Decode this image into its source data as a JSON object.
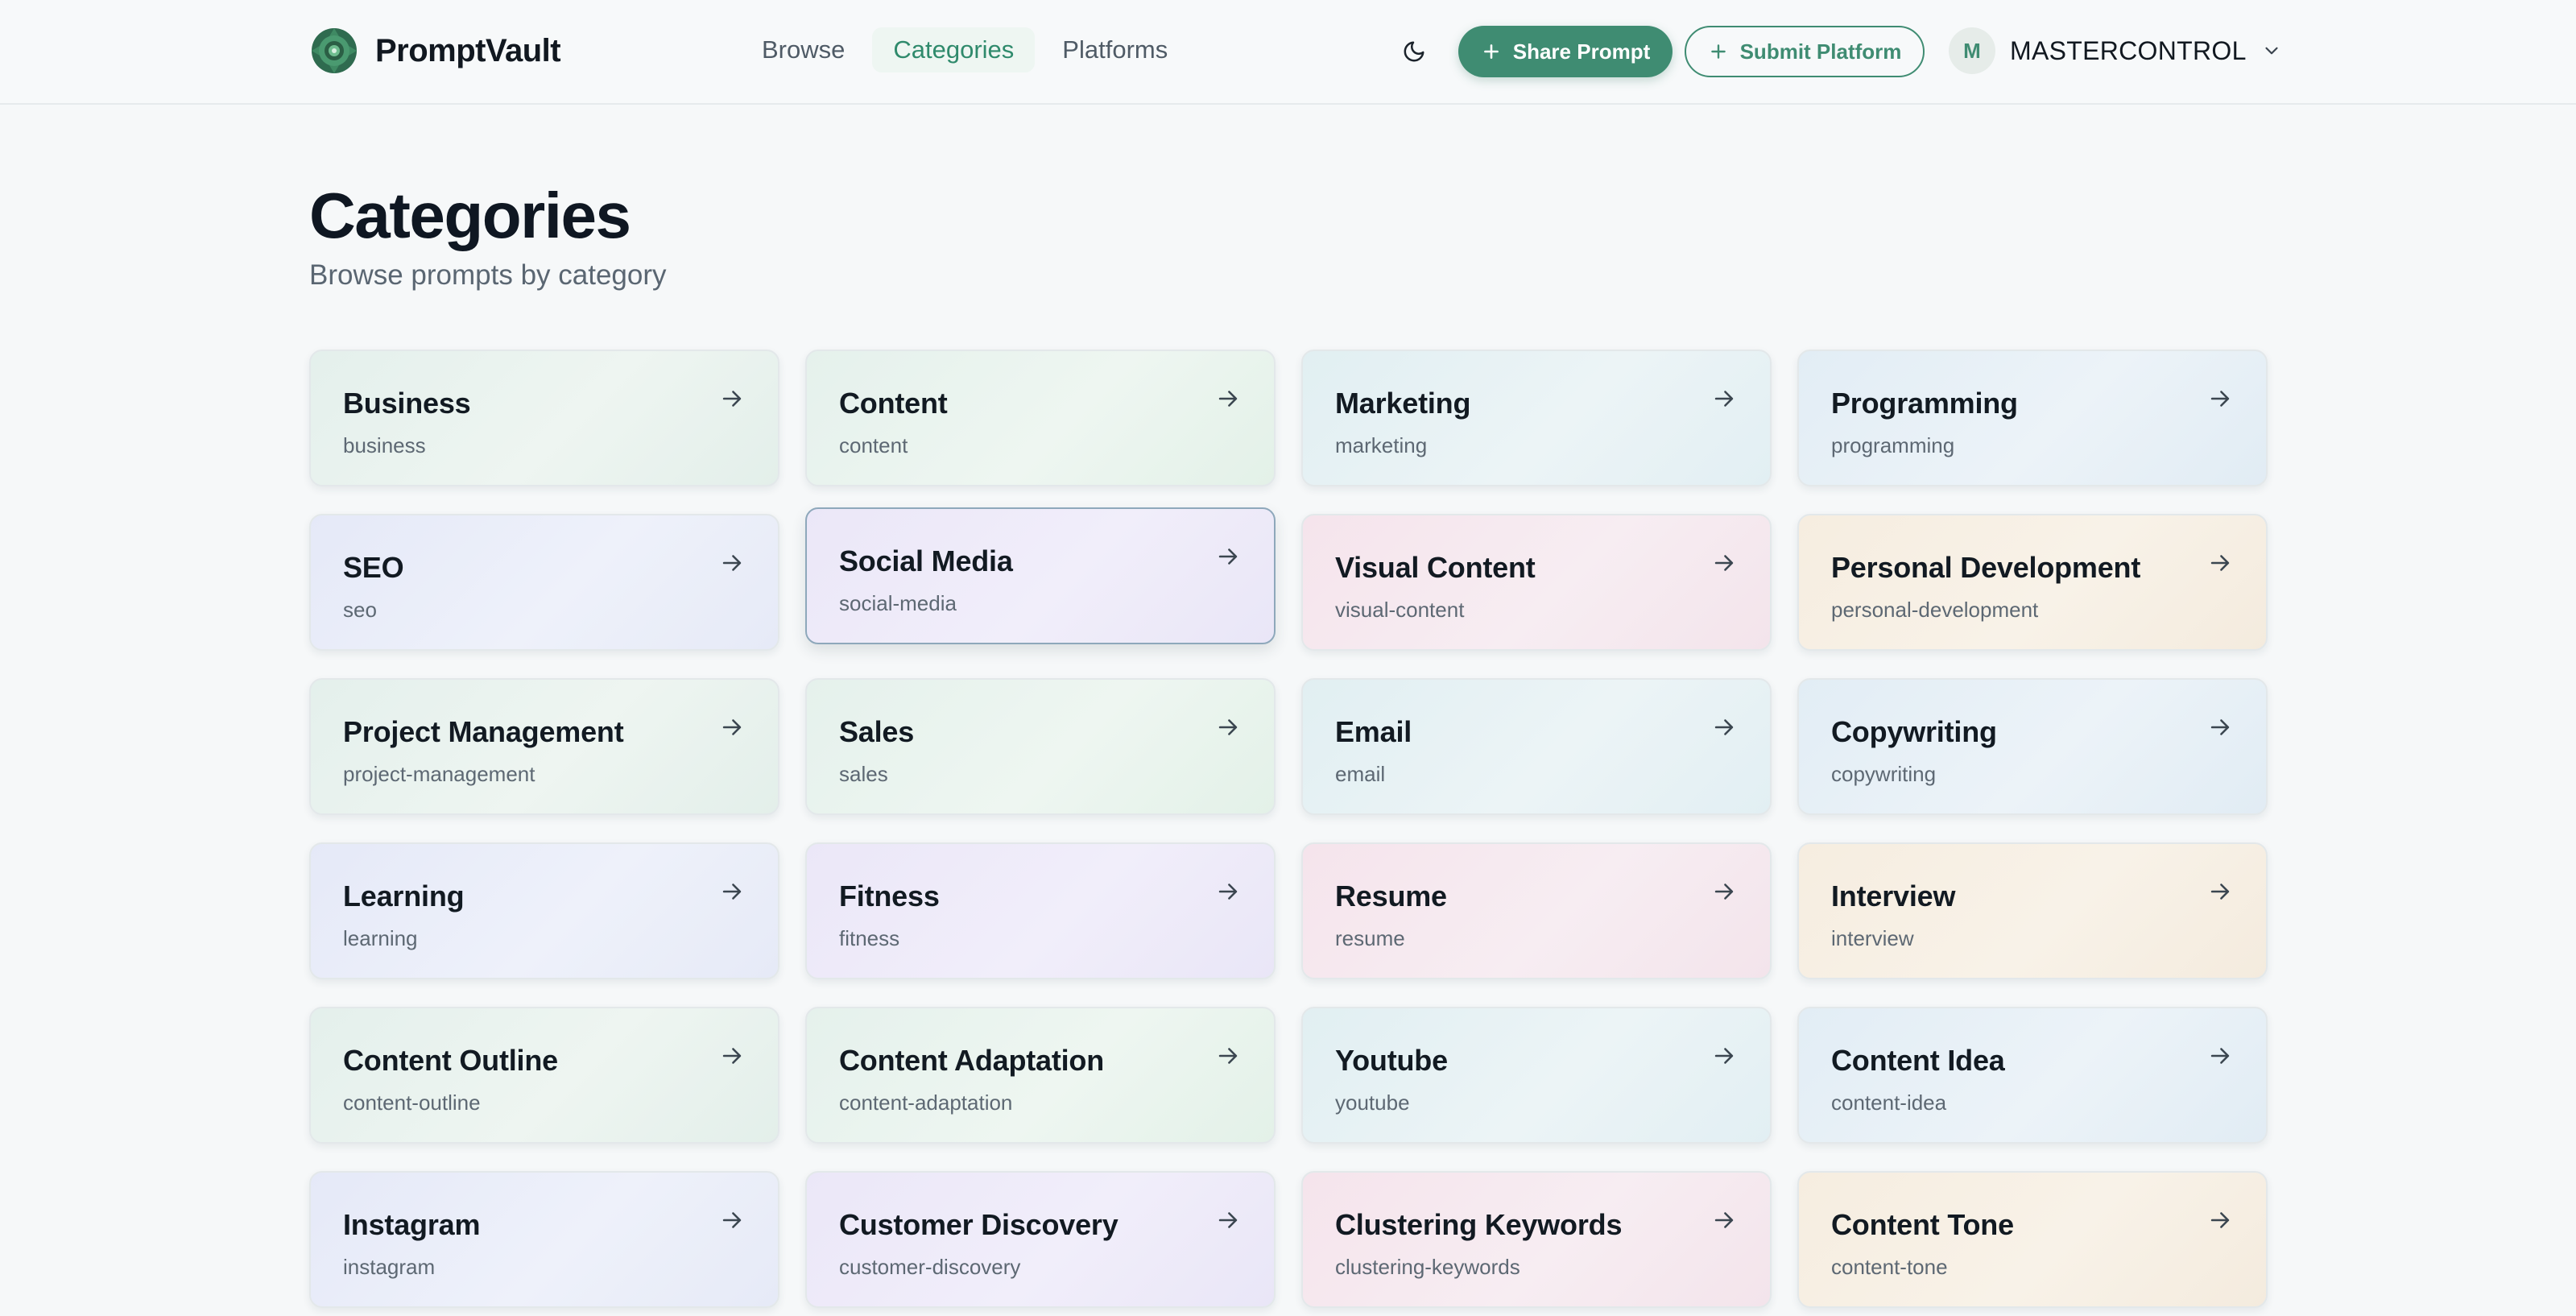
{
  "app": {
    "name": "PromptVault"
  },
  "nav": {
    "items": [
      {
        "label": "Browse"
      },
      {
        "label": "Categories"
      },
      {
        "label": "Platforms"
      }
    ]
  },
  "header": {
    "theme_icon": "moon-icon",
    "share_label": "Share Prompt",
    "submit_label": "Submit Platform",
    "user_initial": "M",
    "user_name": "MASTERCONTROL"
  },
  "page": {
    "title": "Categories",
    "subtitle": "Browse prompts by category"
  },
  "colors": {
    "accent": "#3f8c72",
    "text": "#0f1722",
    "muted": "#5a6672"
  },
  "categories": [
    {
      "name": "Business",
      "slug": "business"
    },
    {
      "name": "Content",
      "slug": "content"
    },
    {
      "name": "Marketing",
      "slug": "marketing"
    },
    {
      "name": "Programming",
      "slug": "programming"
    },
    {
      "name": "SEO",
      "slug": "seo"
    },
    {
      "name": "Social Media",
      "slug": "social-media"
    },
    {
      "name": "Visual Content",
      "slug": "visual-content"
    },
    {
      "name": "Personal Development",
      "slug": "personal-development"
    },
    {
      "name": "Project Management",
      "slug": "project-management"
    },
    {
      "name": "Sales",
      "slug": "sales"
    },
    {
      "name": "Email",
      "slug": "email"
    },
    {
      "name": "Copywriting",
      "slug": "copywriting"
    },
    {
      "name": "Learning",
      "slug": "learning"
    },
    {
      "name": "Fitness",
      "slug": "fitness"
    },
    {
      "name": "Resume",
      "slug": "resume"
    },
    {
      "name": "Interview",
      "slug": "interview"
    },
    {
      "name": "Content Outline",
      "slug": "content-outline"
    },
    {
      "name": "Content Adaptation",
      "slug": "content-adaptation"
    },
    {
      "name": "Youtube",
      "slug": "youtube"
    },
    {
      "name": "Content Idea",
      "slug": "content-idea"
    },
    {
      "name": "Instagram",
      "slug": "instagram"
    },
    {
      "name": "Customer Discovery",
      "slug": "customer-discovery"
    },
    {
      "name": "Clustering Keywords",
      "slug": "clustering-keywords"
    },
    {
      "name": "Content Tone",
      "slug": "content-tone"
    }
  ]
}
